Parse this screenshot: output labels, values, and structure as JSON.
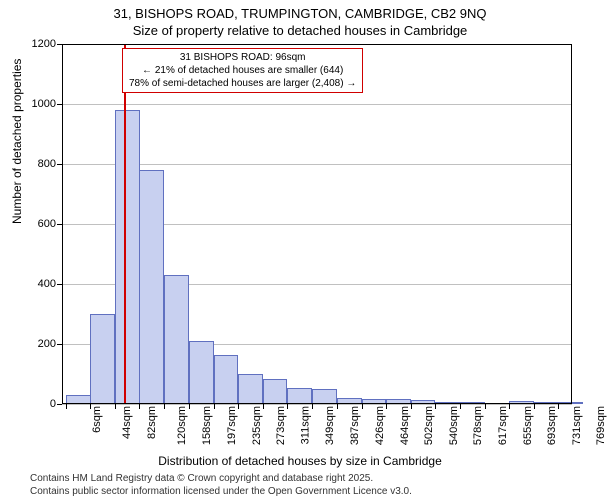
{
  "title_line1": "31, BISHOPS ROAD, TRUMPINGTON, CAMBRIDGE, CB2 9NQ",
  "title_line2": "Size of property relative to detached houses in Cambridge",
  "ylabel": "Number of detached properties",
  "xlabel": "Distribution of detached houses by size in Cambridge",
  "annotation": {
    "line1": "31 BISHOPS ROAD: 96sqm",
    "line2": "← 21% of detached houses are smaller (644)",
    "line3": "78% of semi-detached houses are larger (2,408) →",
    "box_border_color": "#d00000",
    "marker_color": "#d00000",
    "marker_x": 96
  },
  "chart": {
    "type": "histogram",
    "background_color": "#ffffff",
    "grid_color": "#c0c0c0",
    "bar_fill": "#c8d0f0",
    "bar_border": "#6070c0",
    "xlim": [
      0,
      790
    ],
    "ylim": [
      0,
      1200
    ],
    "ytick_step": 200,
    "bin_width": 38.3,
    "categories": [
      "6sqm",
      "44sqm",
      "82sqm",
      "120sqm",
      "158sqm",
      "197sqm",
      "235sqm",
      "273sqm",
      "311sqm",
      "349sqm",
      "387sqm",
      "426sqm",
      "464sqm",
      "502sqm",
      "540sqm",
      "578sqm",
      "617sqm",
      "655sqm",
      "693sqm",
      "731sqm",
      "769sqm"
    ],
    "x_positions": [
      6,
      44,
      82,
      120,
      158,
      197,
      235,
      273,
      311,
      349,
      387,
      426,
      464,
      502,
      540,
      578,
      617,
      655,
      693,
      731,
      769
    ],
    "values": [
      30,
      300,
      980,
      780,
      430,
      210,
      165,
      100,
      82,
      55,
      50,
      20,
      18,
      16,
      12,
      6,
      6,
      0,
      10,
      5,
      3
    ],
    "title_fontsize": 13,
    "label_fontsize": 12,
    "tick_fontsize": 11
  },
  "attribution": {
    "line1": "Contains HM Land Registry data © Crown copyright and database right 2025.",
    "line2": "Contains public sector information licensed under the Open Government Licence v3.0."
  }
}
